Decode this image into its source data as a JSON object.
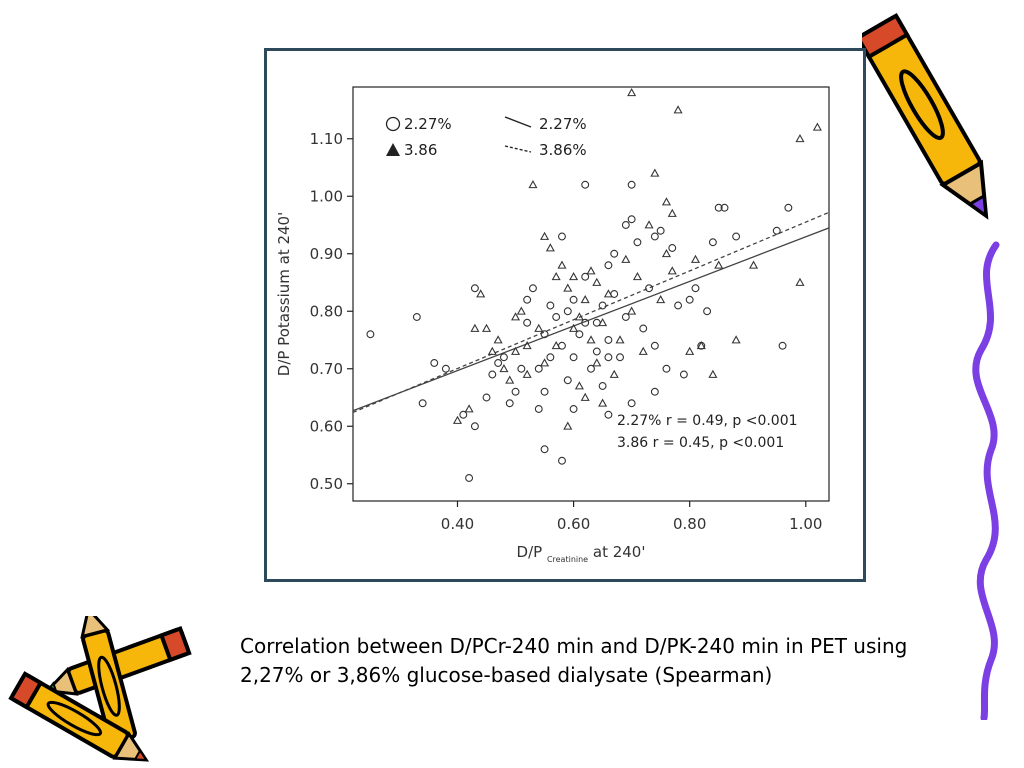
{
  "caption": "Correlation between D/PCr-240 min and D/PK-240 min in PET using 2,27% or 3,86% glucose-based dialysate (Spearman)",
  "colors": {
    "frame": "#2e4a5a",
    "marker": "#333333",
    "line": "#444444",
    "pencil_body": "#f6b70a",
    "pencil_outline": "#000000",
    "squiggle": "#7b3fe4"
  },
  "chart_data": {
    "type": "scatter",
    "xlabel_main": "D/P",
    "xlabel_sub": "Creatinine",
    "xlabel_suffix": "at 240'",
    "ylabel": "D/P Potassium  at 240'",
    "xlim": [
      0.22,
      1.04
    ],
    "ylim": [
      0.47,
      1.19
    ],
    "x_ticks": [
      {
        "v": 0.4,
        "label": "0.40"
      },
      {
        "v": 0.6,
        "label": "0.60"
      },
      {
        "v": 0.8,
        "label": "0.80"
      },
      {
        "v": 1.0,
        "label": "1.00"
      }
    ],
    "y_ticks": [
      {
        "v": 0.5,
        "label": "0.50"
      },
      {
        "v": 0.6,
        "label": "0.60"
      },
      {
        "v": 0.7,
        "label": "0.70"
      },
      {
        "v": 0.8,
        "label": "0.80"
      },
      {
        "v": 0.9,
        "label": "0.90"
      },
      {
        "v": 1.0,
        "label": "1.00"
      },
      {
        "v": 1.1,
        "label": "1.10"
      }
    ],
    "grid": false,
    "legend": {
      "position": "top-left",
      "markers": [
        {
          "symbol": "circle",
          "label": "2.27%"
        },
        {
          "symbol": "triangle",
          "label": "3.86"
        }
      ],
      "lines": [
        {
          "style": "solid",
          "label": "2.27%"
        },
        {
          "style": "dashed",
          "label": "3.86%"
        }
      ]
    },
    "annotations": [
      "2.27%   r = 0.49, p <0.001",
      "3.86  r = 0.45, p <0.001"
    ],
    "regression": [
      {
        "style": "solid",
        "x": [
          0.22,
          1.04
        ],
        "y": [
          0.627,
          0.945
        ]
      },
      {
        "style": "dashed",
        "x": [
          0.22,
          1.04
        ],
        "y": [
          0.624,
          0.972
        ]
      }
    ],
    "series": [
      {
        "symbol": "circle",
        "points": [
          [
            0.25,
            0.76
          ],
          [
            0.33,
            0.79
          ],
          [
            0.34,
            0.64
          ],
          [
            0.36,
            0.71
          ],
          [
            0.38,
            0.7
          ],
          [
            0.41,
            0.62
          ],
          [
            0.42,
            0.51
          ],
          [
            0.43,
            0.6
          ],
          [
            0.43,
            0.84
          ],
          [
            0.45,
            0.65
          ],
          [
            0.46,
            0.69
          ],
          [
            0.47,
            0.71
          ],
          [
            0.48,
            0.72
          ],
          [
            0.49,
            0.64
          ],
          [
            0.5,
            0.66
          ],
          [
            0.51,
            0.7
          ],
          [
            0.52,
            0.78
          ],
          [
            0.52,
            0.82
          ],
          [
            0.53,
            0.84
          ],
          [
            0.54,
            0.7
          ],
          [
            0.54,
            0.63
          ],
          [
            0.55,
            0.66
          ],
          [
            0.55,
            0.76
          ],
          [
            0.56,
            0.81
          ],
          [
            0.57,
            0.79
          ],
          [
            0.58,
            0.74
          ],
          [
            0.58,
            0.93
          ],
          [
            0.58,
            0.54
          ],
          [
            0.59,
            0.68
          ],
          [
            0.6,
            0.72
          ],
          [
            0.6,
            0.82
          ],
          [
            0.6,
            0.63
          ],
          [
            0.61,
            0.76
          ],
          [
            0.62,
            0.86
          ],
          [
            0.62,
            0.78
          ],
          [
            0.63,
            0.7
          ],
          [
            0.64,
            0.73
          ],
          [
            0.65,
            0.67
          ],
          [
            0.65,
            0.81
          ],
          [
            0.66,
            0.88
          ],
          [
            0.66,
            0.75
          ],
          [
            0.66,
            0.62
          ],
          [
            0.67,
            0.9
          ],
          [
            0.67,
            0.83
          ],
          [
            0.68,
            0.72
          ],
          [
            0.69,
            0.79
          ],
          [
            0.69,
            0.95
          ],
          [
            0.7,
            0.96
          ],
          [
            0.7,
            0.64
          ],
          [
            0.71,
            0.92
          ],
          [
            0.72,
            0.77
          ],
          [
            0.73,
            0.84
          ],
          [
            0.74,
            0.93
          ],
          [
            0.74,
            0.74
          ],
          [
            0.75,
            0.94
          ],
          [
            0.76,
            0.7
          ],
          [
            0.77,
            0.91
          ],
          [
            0.78,
            0.81
          ],
          [
            0.79,
            0.69
          ],
          [
            0.8,
            0.82
          ],
          [
            0.81,
            0.84
          ],
          [
            0.82,
            0.74
          ],
          [
            0.83,
            0.8
          ],
          [
            0.84,
            0.92
          ],
          [
            0.85,
            0.98
          ],
          [
            0.86,
            0.98
          ],
          [
            0.88,
            0.93
          ],
          [
            0.95,
            0.94
          ],
          [
            0.97,
            0.98
          ],
          [
            0.96,
            0.74
          ],
          [
            0.74,
            0.66
          ],
          [
            0.55,
            0.56
          ],
          [
            0.62,
            1.02
          ],
          [
            0.7,
            1.02
          ],
          [
            0.66,
            0.72
          ],
          [
            0.64,
            0.78
          ],
          [
            0.56,
            0.72
          ],
          [
            0.59,
            0.8
          ]
        ]
      },
      {
        "symbol": "triangle",
        "points": [
          [
            0.4,
            0.61
          ],
          [
            0.42,
            0.63
          ],
          [
            0.43,
            0.77
          ],
          [
            0.44,
            0.83
          ],
          [
            0.45,
            0.77
          ],
          [
            0.46,
            0.73
          ],
          [
            0.47,
            0.75
          ],
          [
            0.48,
            0.7
          ],
          [
            0.49,
            0.68
          ],
          [
            0.5,
            0.79
          ],
          [
            0.5,
            0.73
          ],
          [
            0.51,
            0.8
          ],
          [
            0.52,
            0.74
          ],
          [
            0.52,
            0.69
          ],
          [
            0.53,
            1.02
          ],
          [
            0.54,
            0.77
          ],
          [
            0.55,
            0.93
          ],
          [
            0.55,
            0.71
          ],
          [
            0.56,
            0.91
          ],
          [
            0.57,
            0.86
          ],
          [
            0.57,
            0.74
          ],
          [
            0.58,
            0.88
          ],
          [
            0.59,
            0.84
          ],
          [
            0.6,
            0.86
          ],
          [
            0.6,
            0.77
          ],
          [
            0.61,
            0.79
          ],
          [
            0.61,
            0.67
          ],
          [
            0.62,
            0.82
          ],
          [
            0.62,
            0.65
          ],
          [
            0.63,
            0.87
          ],
          [
            0.63,
            0.75
          ],
          [
            0.64,
            0.85
          ],
          [
            0.64,
            0.71
          ],
          [
            0.65,
            0.78
          ],
          [
            0.66,
            0.83
          ],
          [
            0.67,
            0.69
          ],
          [
            0.68,
            0.75
          ],
          [
            0.69,
            0.89
          ],
          [
            0.7,
            0.8
          ],
          [
            0.7,
            1.18
          ],
          [
            0.71,
            0.86
          ],
          [
            0.72,
            0.73
          ],
          [
            0.73,
            0.95
          ],
          [
            0.74,
            1.04
          ],
          [
            0.75,
            0.82
          ],
          [
            0.76,
            0.9
          ],
          [
            0.76,
            0.99
          ],
          [
            0.77,
            0.97
          ],
          [
            0.78,
            1.15
          ],
          [
            0.8,
            0.73
          ],
          [
            0.81,
            0.89
          ],
          [
            0.82,
            0.74
          ],
          [
            0.84,
            0.69
          ],
          [
            0.85,
            0.88
          ],
          [
            0.88,
            0.75
          ],
          [
            0.91,
            0.88
          ],
          [
            0.99,
            1.1
          ],
          [
            1.02,
            1.12
          ],
          [
            0.99,
            0.85
          ],
          [
            0.77,
            0.87
          ],
          [
            0.59,
            0.6
          ],
          [
            0.65,
            0.64
          ]
        ]
      }
    ]
  }
}
